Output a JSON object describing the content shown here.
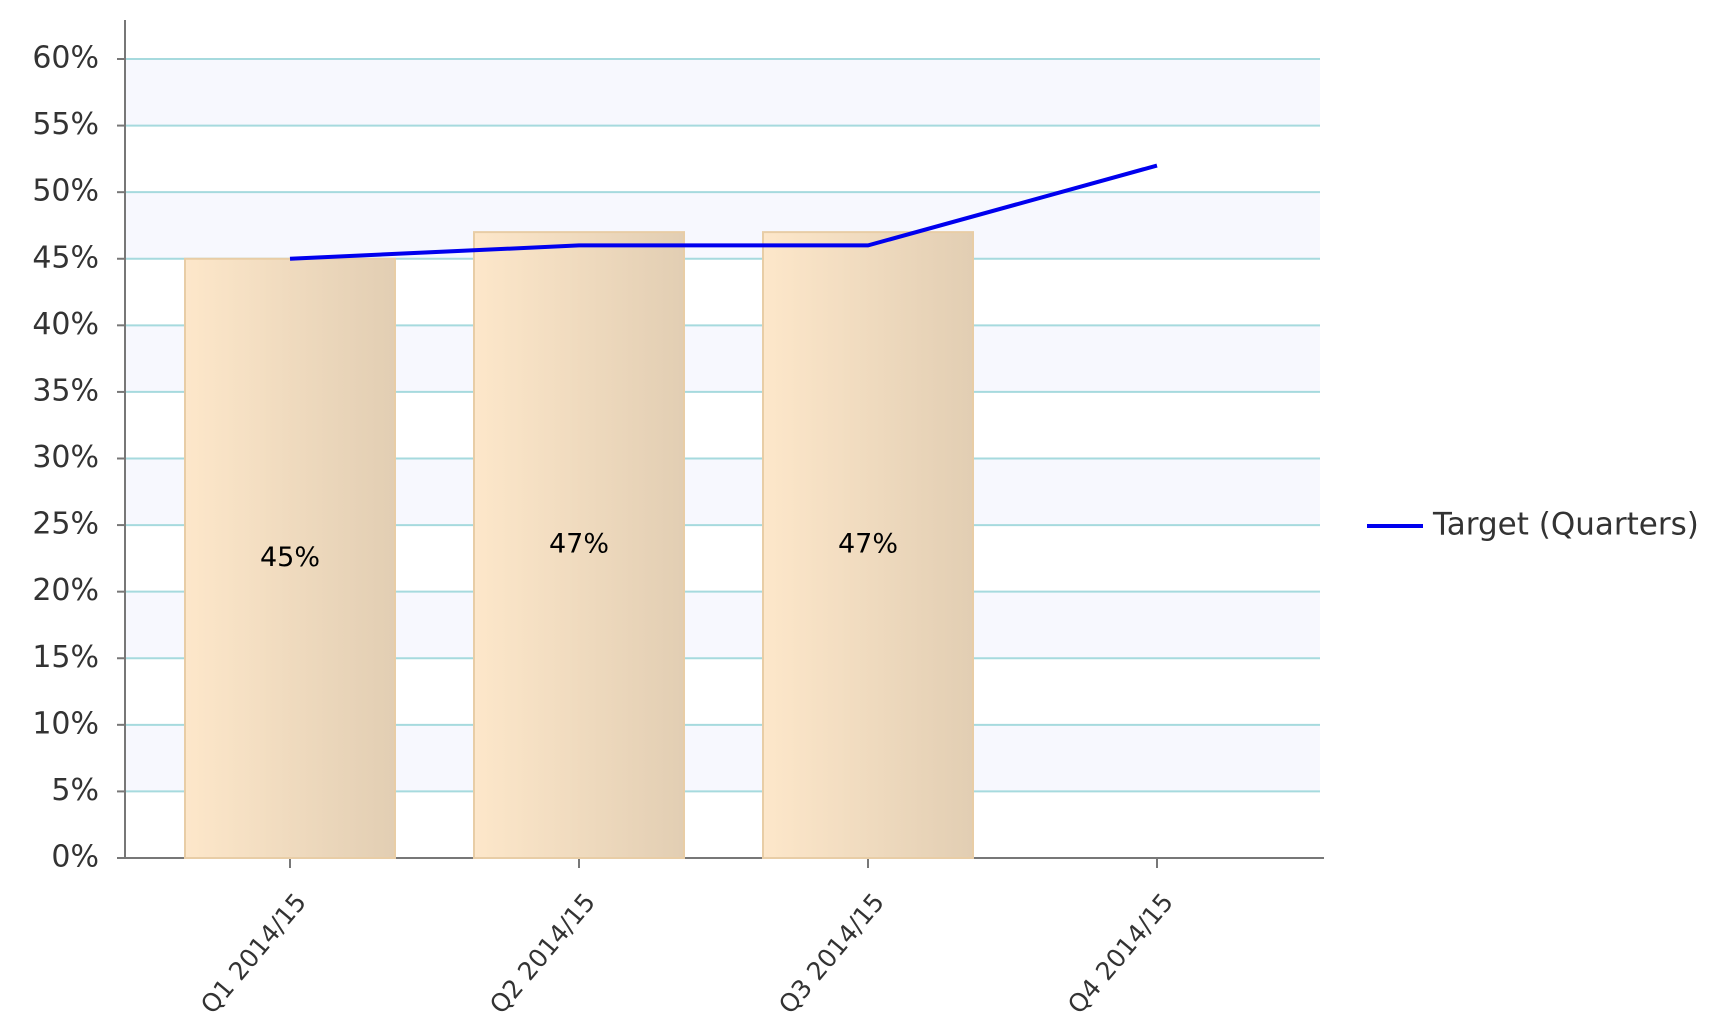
{
  "chart_data": {
    "type": "combo",
    "categories": [
      "Q1 2014/15",
      "Q2 2014/15",
      "Q3 2014/15",
      "Q4 2014/15"
    ],
    "series": [
      {
        "type": "bar",
        "color": "#f4dcbc",
        "values": [
          45,
          47,
          47,
          null
        ],
        "value_labels": [
          "45%",
          "47%",
          "47%",
          null
        ]
      },
      {
        "type": "line",
        "name": "Target (Quarters)",
        "color": "#0000ee",
        "values": [
          45,
          46,
          46,
          52
        ]
      }
    ],
    "ylim": [
      0,
      60
    ],
    "yticks": [
      {
        "value": 0,
        "label": "0%"
      },
      {
        "value": 5,
        "label": "5%"
      },
      {
        "value": 10,
        "label": "10%"
      },
      {
        "value": 15,
        "label": "15%"
      },
      {
        "value": 20,
        "label": "20%"
      },
      {
        "value": 25,
        "label": "25%"
      },
      {
        "value": 30,
        "label": "30%"
      },
      {
        "value": 35,
        "label": "35%"
      },
      {
        "value": 40,
        "label": "40%"
      },
      {
        "value": 45,
        "label": "45%"
      },
      {
        "value": 50,
        "label": "50%"
      },
      {
        "value": 55,
        "label": "55%"
      },
      {
        "value": 60,
        "label": "60%"
      }
    ],
    "grid": true,
    "legend": "right"
  }
}
